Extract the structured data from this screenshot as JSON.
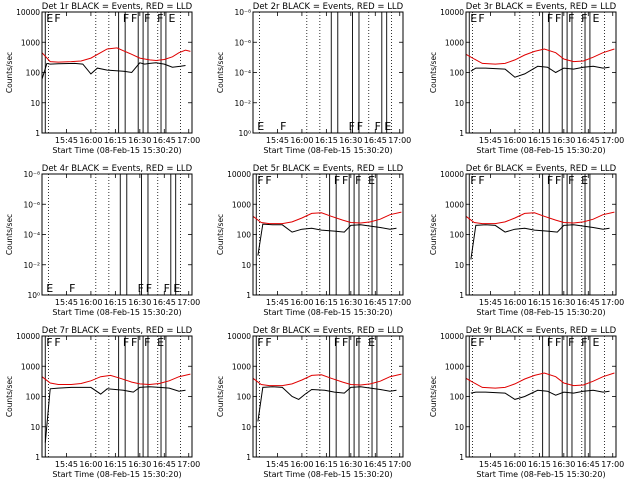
{
  "colors": {
    "events": "#000000",
    "lld": "#e00000",
    "background": "#ffffff",
    "axes": "#000000"
  },
  "shared": {
    "x_ticks": [
      "15:45",
      "16:00",
      "16:15",
      "16:30",
      "16:45",
      "17:00"
    ],
    "x_label": "Start Time (08-Feb-15 15:30:20)",
    "y_label": "Counts/sec"
  },
  "chart_data": [
    {
      "type": "line",
      "title": "Det 1r BLACK = Events, RED = LLD",
      "xlabel": "Start Time (08-Feb-15 15:30:20)",
      "ylabel": "Counts/sec",
      "x_ticks": [
        "15:45",
        "16:00",
        "16:15",
        "16:30",
        "16:45",
        "17:00"
      ],
      "y_ticks": [
        "1",
        "10",
        "100",
        "1000",
        "10000"
      ],
      "yscale": "log",
      "ylim": [
        1,
        10000
      ],
      "flags": [
        "E",
        "F",
        "F",
        "F",
        "F",
        "F",
        "E"
      ],
      "series": [
        {
          "name": "Events",
          "color": "#000000",
          "x": [
            0,
            3,
            5,
            10,
            20,
            25,
            30,
            34,
            40,
            50,
            55,
            60,
            63,
            66,
            70,
            75,
            80,
            85,
            88
          ],
          "y": [
            60,
            200,
            190,
            195,
            200,
            190,
            90,
            140,
            120,
            110,
            100,
            210,
            190,
            200,
            210,
            190,
            150,
            160,
            170
          ]
        },
        {
          "name": "LLD",
          "color": "#e00000",
          "x": [
            0,
            5,
            10,
            18,
            24,
            30,
            40,
            46,
            50,
            55,
            60,
            66,
            70,
            75,
            80,
            84,
            88,
            91
          ],
          "y": [
            450,
            230,
            220,
            230,
            240,
            300,
            600,
            650,
            520,
            400,
            300,
            260,
            250,
            270,
            330,
            450,
            550,
            500
          ]
        }
      ]
    },
    {
      "type": "line",
      "title": "Det 2r BLACK = Events, RED = LLD",
      "xlabel": "Start Time (08-Feb-15 15:30:20)",
      "ylabel": "Counts/sec",
      "x_ticks": [
        "15:45",
        "16:00",
        "16:15",
        "16:30",
        "16:45",
        "17:00"
      ],
      "y_ticks": [
        "10⁰",
        "10⁻²",
        "10⁻⁴",
        "10⁻⁶",
        "10⁻⁸"
      ],
      "yscale": "log",
      "ylim": [
        1,
        1e-08
      ],
      "flags": [
        "E",
        "F",
        "F",
        "F",
        "F",
        "E"
      ],
      "series": []
    },
    {
      "type": "line",
      "title": "Det 3r BLACK = Events, RED = LLD",
      "xlabel": "Start Time (08-Feb-15 15:30:20)",
      "ylabel": "Counts/sec",
      "x_ticks": [
        "15:45",
        "16:00",
        "16:15",
        "16:30",
        "16:45",
        "17:00"
      ],
      "y_ticks": [
        "1",
        "10",
        "100",
        "1000",
        "10000"
      ],
      "yscale": "log",
      "ylim": [
        1,
        10000
      ],
      "flags": [
        "E",
        "F",
        "F",
        "F",
        "F",
        "F",
        "E"
      ],
      "series": [
        {
          "name": "Events",
          "color": "#000000",
          "x": [
            3,
            6,
            12,
            18,
            24,
            30,
            36,
            44,
            50,
            55,
            60,
            66,
            72,
            78,
            84,
            88
          ],
          "y": [
            110,
            140,
            140,
            135,
            130,
            70,
            90,
            160,
            150,
            100,
            140,
            130,
            150,
            160,
            140,
            150
          ]
        },
        {
          "name": "LLD",
          "color": "#e00000",
          "x": [
            0,
            5,
            10,
            18,
            24,
            30,
            36,
            42,
            48,
            55,
            60,
            66,
            72,
            78,
            84,
            91
          ],
          "y": [
            400,
            280,
            200,
            190,
            200,
            260,
            380,
            500,
            600,
            450,
            280,
            230,
            240,
            320,
            450,
            600
          ]
        }
      ]
    },
    {
      "type": "line",
      "title": "Det 4r BLACK = Events, RED = LLD",
      "xlabel": "Start Time (08-Feb-15 15:30:20)",
      "ylabel": "Counts/sec",
      "x_ticks": [
        "15:45",
        "16:00",
        "16:15",
        "16:30",
        "16:45",
        "17:00"
      ],
      "y_ticks": [
        "10⁰",
        "10⁻²",
        "10⁻⁴",
        "10⁻⁶",
        "10⁻⁸"
      ],
      "yscale": "log",
      "ylim": [
        1,
        1e-08
      ],
      "flags": [
        "E",
        "F",
        "F",
        "F",
        "F",
        "E"
      ],
      "series": []
    },
    {
      "type": "line",
      "title": "Det 5r BLACK = Events, RED = LLD",
      "xlabel": "Start Time (08-Feb-15 15:30:20)",
      "ylabel": "Counts/sec",
      "x_ticks": [
        "15:45",
        "16:00",
        "16:15",
        "16:30",
        "16:45",
        "17:00"
      ],
      "y_ticks": [
        "1",
        "10",
        "100",
        "1000",
        "10000"
      ],
      "yscale": "log",
      "ylim": [
        1,
        10000
      ],
      "flags": [
        "F",
        "F",
        "F",
        "F",
        "F",
        "E"
      ],
      "series": [
        {
          "name": "Events",
          "color": "#000000",
          "x": [
            3,
            6,
            12,
            18,
            24,
            30,
            36,
            42,
            50,
            56,
            60,
            66,
            72,
            78,
            84,
            88
          ],
          "y": [
            20,
            220,
            210,
            210,
            120,
            150,
            160,
            140,
            130,
            120,
            200,
            210,
            190,
            170,
            150,
            160
          ]
        },
        {
          "name": "LLD",
          "color": "#e00000",
          "x": [
            0,
            5,
            10,
            18,
            24,
            30,
            36,
            42,
            48,
            55,
            60,
            66,
            72,
            78,
            84,
            91
          ],
          "y": [
            400,
            250,
            230,
            230,
            260,
            350,
            500,
            520,
            400,
            300,
            250,
            240,
            260,
            320,
            450,
            550
          ]
        }
      ]
    },
    {
      "type": "line",
      "title": "Det 6r BLACK = Events, RED = LLD",
      "xlabel": "Start Time (08-Feb-15 15:30:20)",
      "ylabel": "Counts/sec",
      "x_ticks": [
        "15:45",
        "16:00",
        "16:15",
        "16:30",
        "16:45",
        "17:00"
      ],
      "y_ticks": [
        "1",
        "10",
        "100",
        "1000",
        "10000"
      ],
      "yscale": "log",
      "ylim": [
        1,
        10000
      ],
      "flags": [
        "F",
        "F",
        "F",
        "F",
        "F",
        "E"
      ],
      "series": [
        {
          "name": "Events",
          "color": "#000000",
          "x": [
            3,
            6,
            12,
            18,
            24,
            30,
            36,
            42,
            50,
            56,
            60,
            66,
            72,
            78,
            84,
            88
          ],
          "y": [
            15,
            200,
            210,
            200,
            120,
            150,
            160,
            140,
            130,
            120,
            200,
            210,
            190,
            170,
            150,
            160
          ]
        },
        {
          "name": "LLD",
          "color": "#e00000",
          "x": [
            0,
            5,
            10,
            18,
            24,
            30,
            36,
            42,
            48,
            55,
            60,
            66,
            72,
            78,
            84,
            91
          ],
          "y": [
            400,
            250,
            230,
            230,
            260,
            350,
            500,
            520,
            400,
            300,
            250,
            240,
            260,
            320,
            450,
            550
          ]
        }
      ]
    },
    {
      "type": "line",
      "title": "Det 7r BLACK = Events, RED = LLD",
      "xlabel": "Start Time (08-Feb-15 15:30:20)",
      "ylabel": "Counts/sec",
      "x_ticks": [
        "15:45",
        "16:00",
        "16:15",
        "16:30",
        "16:45",
        "17:00"
      ],
      "y_ticks": [
        "1",
        "10",
        "100",
        "1000",
        "10000"
      ],
      "yscale": "log",
      "ylim": [
        1,
        10000
      ],
      "flags": [
        "F",
        "F",
        "F",
        "F",
        "F",
        "E"
      ],
      "series": [
        {
          "name": "Events",
          "color": "#000000",
          "x": [
            2,
            5,
            10,
            18,
            24,
            30,
            36,
            40,
            50,
            56,
            60,
            66,
            72,
            78,
            84,
            88
          ],
          "y": [
            3,
            180,
            190,
            200,
            200,
            200,
            120,
            180,
            160,
            140,
            200,
            210,
            200,
            190,
            150,
            160
          ]
        },
        {
          "name": "LLD",
          "color": "#e00000",
          "x": [
            0,
            5,
            10,
            18,
            24,
            30,
            36,
            42,
            48,
            55,
            60,
            66,
            72,
            78,
            84,
            91
          ],
          "y": [
            450,
            280,
            250,
            250,
            270,
            330,
            450,
            500,
            400,
            300,
            260,
            250,
            270,
            330,
            450,
            550
          ]
        }
      ]
    },
    {
      "type": "line",
      "title": "Det 8r BLACK = Events, RED = LLD",
      "xlabel": "Start Time (08-Feb-15 15:30:20)",
      "ylabel": "Counts/sec",
      "x_ticks": [
        "15:45",
        "16:00",
        "16:15",
        "16:30",
        "16:45",
        "17:00"
      ],
      "y_ticks": [
        "1",
        "10",
        "100",
        "1000",
        "10000"
      ],
      "yscale": "log",
      "ylim": [
        1,
        10000
      ],
      "flags": [
        "F",
        "F",
        "F",
        "F",
        "F",
        "E"
      ],
      "series": [
        {
          "name": "Events",
          "color": "#000000",
          "x": [
            3,
            6,
            12,
            18,
            24,
            28,
            32,
            36,
            44,
            50,
            56,
            60,
            66,
            72,
            78,
            84,
            88
          ],
          "y": [
            15,
            200,
            210,
            200,
            100,
            80,
            120,
            170,
            160,
            140,
            130,
            200,
            210,
            190,
            170,
            150,
            160
          ]
        },
        {
          "name": "LLD",
          "color": "#e00000",
          "x": [
            0,
            5,
            10,
            18,
            24,
            30,
            36,
            42,
            48,
            55,
            60,
            66,
            72,
            78,
            84,
            91
          ],
          "y": [
            400,
            250,
            230,
            230,
            260,
            350,
            500,
            520,
            400,
            300,
            250,
            240,
            260,
            320,
            450,
            550
          ]
        }
      ]
    },
    {
      "type": "line",
      "title": "Det 9r BLACK = Events, RED = LLD",
      "xlabel": "Start Time (08-Feb-15 15:30:20)",
      "ylabel": "Counts/sec",
      "x_ticks": [
        "15:45",
        "16:00",
        "16:15",
        "16:30",
        "16:45",
        "17:00"
      ],
      "y_ticks": [
        "1",
        "10",
        "100",
        "1000",
        "10000"
      ],
      "yscale": "log",
      "ylim": [
        1,
        10000
      ],
      "flags": [
        "E",
        "F",
        "F",
        "F",
        "F",
        "F",
        "E"
      ],
      "series": [
        {
          "name": "Events",
          "color": "#000000",
          "x": [
            3,
            6,
            12,
            18,
            24,
            30,
            36,
            44,
            50,
            55,
            60,
            66,
            72,
            78,
            84,
            88
          ],
          "y": [
            130,
            140,
            140,
            135,
            130,
            80,
            100,
            160,
            150,
            110,
            140,
            130,
            150,
            160,
            140,
            150
          ]
        },
        {
          "name": "LLD",
          "color": "#e00000",
          "x": [
            0,
            5,
            10,
            18,
            24,
            30,
            36,
            42,
            48,
            55,
            60,
            66,
            72,
            78,
            84,
            91
          ],
          "y": [
            400,
            280,
            200,
            190,
            200,
            260,
            380,
            500,
            600,
            450,
            280,
            230,
            240,
            320,
            450,
            600
          ]
        }
      ]
    }
  ]
}
